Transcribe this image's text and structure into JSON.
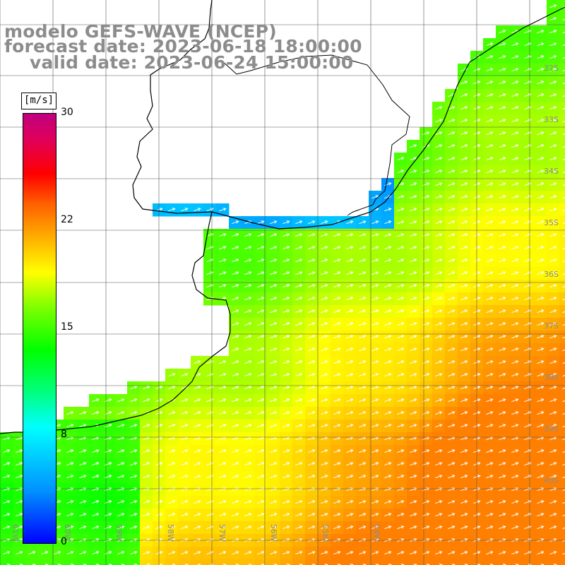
{
  "title": {
    "model": "modelo GEFS-WAVE (NCEP)",
    "forecast": "forecast date: 2023-06-18 18:00:00",
    "valid": "valid date: 2023-06-24 15:00:00"
  },
  "colorbar": {
    "unit": "[m/s]",
    "ticks": [
      "30",
      "22",
      "15",
      "8",
      "0"
    ],
    "range": [
      0,
      30
    ],
    "colors": [
      "#0000ff",
      "#0090ff",
      "#00ffff",
      "#00ff80",
      "#00ff00",
      "#80ff00",
      "#ffff00",
      "#ffb000",
      "#ff6000",
      "#ff0000",
      "#c00080"
    ]
  },
  "map": {
    "lat_labels": [
      "32S",
      "33S",
      "34S",
      "35S",
      "36S",
      "37S",
      "38S",
      "39S",
      "40S"
    ],
    "lon_labels": [
      "61W",
      "60W",
      "59W",
      "58W",
      "57W",
      "56W",
      "55W",
      "54W"
    ],
    "wind_direction": "from west-southwest toward east-northeast"
  }
}
